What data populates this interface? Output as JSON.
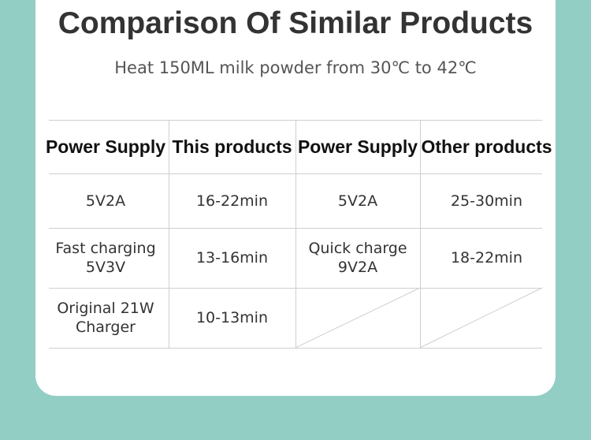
{
  "header": {
    "title": "Comparison Of Similar Products",
    "subtitle": "Heat 150ML milk powder from 30℃ to 42℃"
  },
  "table": {
    "columns": [
      "Power Supply",
      "This products",
      "Power Supply",
      "Other products"
    ],
    "rows": [
      [
        "5V2A",
        "16-22min",
        "5V2A",
        "25-30min"
      ],
      [
        "Fast charging\n5V3V",
        "13-16min",
        "Quick charge\n9V2A",
        "18-22min"
      ],
      [
        "Original 21W\nCharger",
        "10-13min"
      ]
    ]
  }
}
